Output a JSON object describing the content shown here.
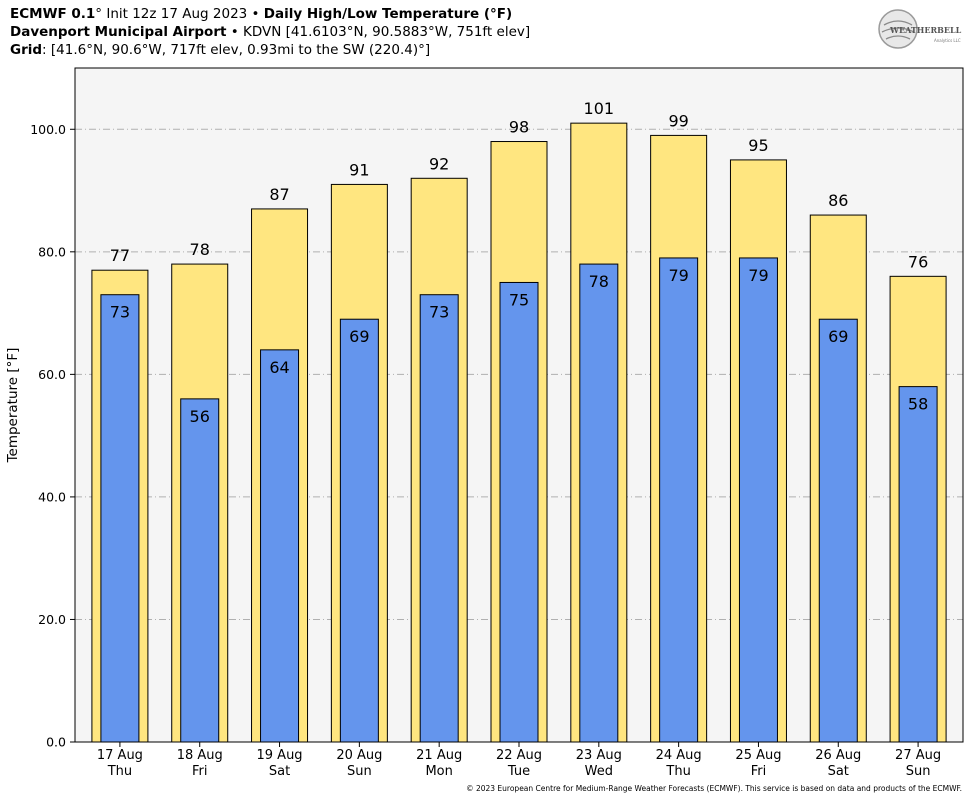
{
  "header": {
    "line1": {
      "model": "ECMWF 0.1",
      "degree": "°",
      "init": " Init 12z 17 Aug 2023",
      "bullet": " • ",
      "product": "Daily High/Low Temperature (°F)"
    },
    "line2": {
      "station": "Davenport Municipal Airport",
      "bullet": " • ",
      "detail": "KDVN [41.6103°N, 90.5883°W, 751ft elev]"
    },
    "line3": {
      "label": "Grid",
      "detail": ": [41.6°N, 90.6°W, 717ft elev, 0.93mi to the SW (220.4)°]"
    }
  },
  "logo": {
    "text_main": "WEATHERBELL",
    "text_sub": "Analytics LLC"
  },
  "footer": "© 2023 European Centre for Medium-Range Weather Forecasts (ECMWF). This service is based on data and products of the ECMWF.",
  "colors": {
    "high": "#ffe680",
    "low": "#6495ed",
    "plot_bg": "#f5f5f5",
    "grid": "#b0b0b0"
  },
  "chart_data": {
    "type": "bar",
    "ylabel": "Temperature [°F]",
    "ylim": [
      0,
      110
    ],
    "yticks": [
      0,
      20,
      40,
      60,
      80,
      100
    ],
    "ytick_labels": [
      "0.0",
      "20.0",
      "40.0",
      "60.0",
      "80.0",
      "100.0"
    ],
    "grid": true,
    "categories": [
      "17 Aug",
      "18 Aug",
      "19 Aug",
      "20 Aug",
      "21 Aug",
      "22 Aug",
      "23 Aug",
      "24 Aug",
      "25 Aug",
      "26 Aug",
      "27 Aug"
    ],
    "weekdays": [
      "Thu",
      "Fri",
      "Sat",
      "Sun",
      "Mon",
      "Tue",
      "Wed",
      "Thu",
      "Fri",
      "Sat",
      "Sun"
    ],
    "series": [
      {
        "key": "high",
        "values": [
          77,
          78,
          87,
          91,
          92,
          98,
          101,
          99,
          95,
          86,
          76
        ]
      },
      {
        "key": "low",
        "values": [
          73,
          56,
          64,
          69,
          73,
          75,
          78,
          79,
          79,
          69,
          58
        ]
      }
    ]
  }
}
